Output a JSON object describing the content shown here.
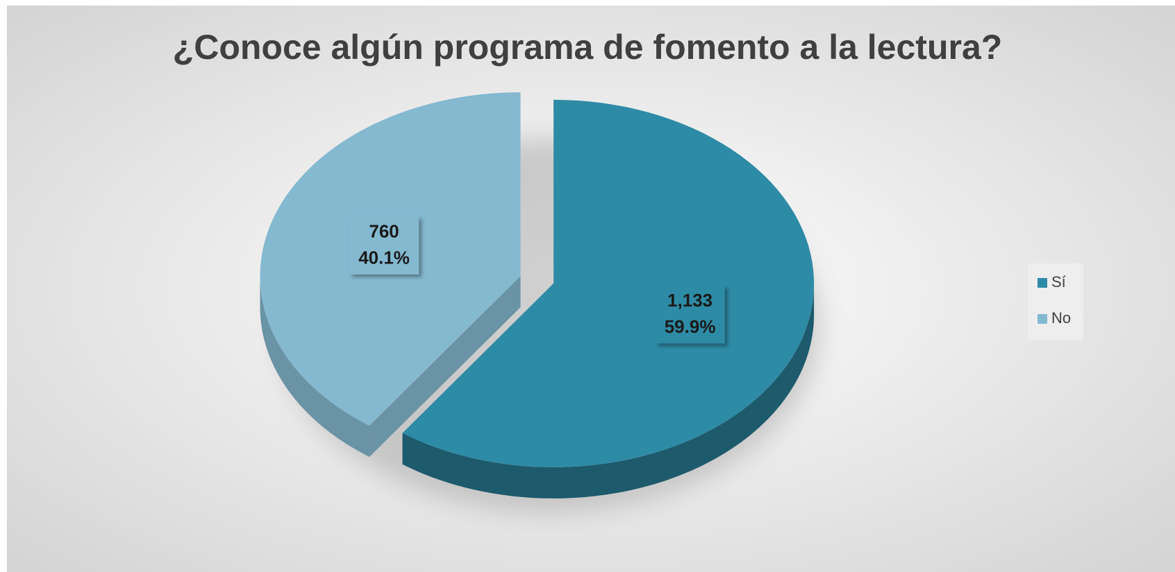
{
  "chart_data": {
    "type": "pie",
    "title": "¿Conoce algún programa de fomento a la lectura?",
    "categories": [
      "Sí",
      "No"
    ],
    "values": [
      1133,
      760
    ],
    "value_labels": [
      "1,133",
      "760"
    ],
    "percent_labels": [
      "59.9%",
      "40.1%"
    ],
    "colors": [
      "#2e8ba6",
      "#84b9d0"
    ],
    "side_colors": [
      "#1d5a6c",
      "#6a93a5"
    ],
    "legend": "right"
  }
}
